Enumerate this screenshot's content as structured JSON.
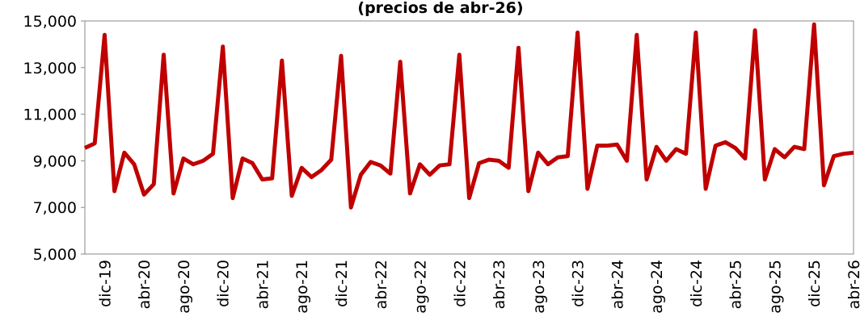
{
  "chart_data": {
    "type": "line",
    "title": "(precios de abr-26)",
    "categories": [
      null,
      null,
      "dic-19",
      null,
      null,
      null,
      "abr-20",
      null,
      null,
      null,
      "ago-20",
      null,
      null,
      null,
      "dic-20",
      null,
      null,
      null,
      "abr-21",
      null,
      null,
      null,
      "ago-21",
      null,
      null,
      null,
      "dic-21",
      null,
      null,
      null,
      "abr-22",
      null,
      null,
      null,
      "ago-22",
      null,
      null,
      null,
      "dic-22",
      null,
      null,
      null,
      "abr-23",
      null,
      null,
      null,
      "ago-23",
      null,
      null,
      null,
      "dic-23",
      null,
      null,
      null,
      "abr-24",
      null,
      null,
      null,
      "ago-24",
      null,
      null,
      null,
      "dic-24",
      null,
      null,
      null,
      "abr-25",
      null,
      null,
      null,
      "ago-25",
      null,
      null,
      null,
      "dic-25",
      null,
      null,
      null,
      "abr-26"
    ],
    "series": [
      {
        "color": "#c00000",
        "values": [
          9550,
          9750,
          14400,
          7700,
          9350,
          8850,
          7550,
          8000,
          13550,
          7600,
          9100,
          8850,
          9000,
          9300,
          13900,
          7400,
          9100,
          8900,
          8200,
          8250,
          13300,
          7500,
          8700,
          8300,
          8600,
          9050,
          13500,
          7000,
          8400,
          8950,
          8800,
          8450,
          13250,
          7600,
          8850,
          8400,
          8800,
          8850,
          13550,
          7400,
          8900,
          9050,
          9000,
          8700,
          13850,
          7700,
          9350,
          8850,
          9150,
          9200,
          14500,
          7800,
          9650,
          9650,
          9700,
          9000,
          14400,
          8200,
          9600,
          9000,
          9500,
          9300,
          14500,
          7800,
          9650,
          9800,
          9550,
          9100,
          14600,
          8200,
          9500,
          9150,
          9600,
          9500,
          14850,
          7950,
          9200,
          9300,
          9350
        ]
      }
    ],
    "ylim": [
      5000,
      15000
    ],
    "yticks": [
      {
        "value": 5000,
        "label": "5,000"
      },
      {
        "value": 7000,
        "label": "7,000"
      },
      {
        "value": 9000,
        "label": "9,000"
      },
      {
        "value": 11000,
        "label": "11,000"
      },
      {
        "value": 13000,
        "label": "13,000"
      },
      {
        "value": 15000,
        "label": "15,000"
      }
    ]
  }
}
